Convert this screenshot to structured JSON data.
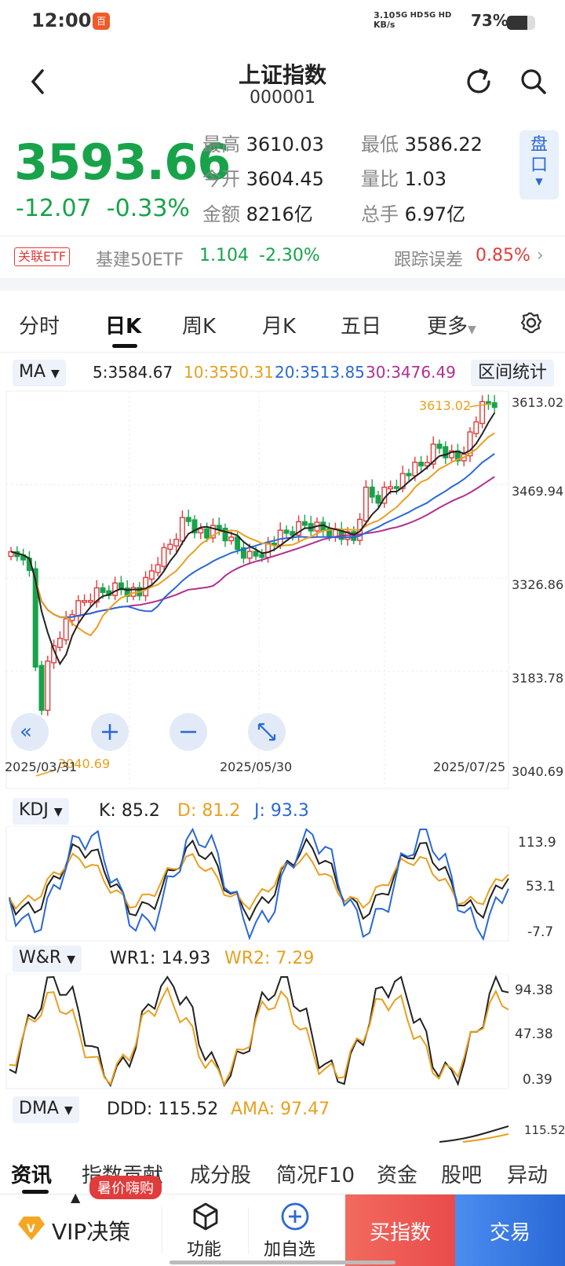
{
  "status": {
    "time": "12:00",
    "app_badge": "百",
    "net_speed": "3.10",
    "net_unit": "KB/s",
    "sig1": "5G HD",
    "sig2": "5G HD",
    "battery": "73%",
    "battery_level": 0.73
  },
  "header": {
    "title": "上证指数",
    "code": "000001"
  },
  "quote": {
    "price": "3593.66",
    "change": "-12.07",
    "change_pct": "-0.33%",
    "high_label": "最高",
    "high": "3610.03",
    "low_label": "最低",
    "low": "3586.22",
    "open_label": "今开",
    "open": "3604.45",
    "ratio_label": "量比",
    "ratio": "1.03",
    "amount_label": "金额",
    "amount": "8216亿",
    "turnover_label": "总手",
    "turnover": "6.97亿",
    "pankou": "盘口"
  },
  "etf": {
    "tag": "关联ETF",
    "name": "基建50ETF",
    "price": "1.104",
    "pct": "-2.30%",
    "track_label": "跟踪误差",
    "track": "0.85%"
  },
  "tabs": [
    "分时",
    "日K",
    "周K",
    "月K",
    "五日",
    "更多"
  ],
  "ma": {
    "label": "MA",
    "ma5": "5:3584.67",
    "ma10": "10:3550.31",
    "ma20": "20:3513.85",
    "ma30": "30:3476.49",
    "stat_btn": "区间统计"
  },
  "kline": {
    "yticks": [
      "3613.02",
      "3469.94",
      "3326.86",
      "3183.78",
      "3040.69"
    ],
    "high_mark": "3613.02",
    "low_mark": "3040.69",
    "dates": [
      "2025/03/31",
      "2025/05/30",
      "2025/07/25"
    ]
  },
  "kdj": {
    "label": "KDJ",
    "k": "K: 85.2",
    "d": "D: 81.2",
    "j": "J: 93.3",
    "yticks": [
      "113.9",
      "53.1",
      "-7.7"
    ]
  },
  "wr": {
    "label": "W&R",
    "wr1": "WR1: 14.93",
    "wr2": "WR2: 7.29",
    "yticks": [
      "94.38",
      "47.38",
      "0.39"
    ]
  },
  "dma": {
    "label": "DMA",
    "ddd": "DDD: 115.52",
    "ama": "AMA: 97.47",
    "ytick": "115.52"
  },
  "bottom_tabs": [
    "资讯",
    "指数贡献",
    "成分股",
    "简况F10",
    "资金",
    "股吧",
    "异动"
  ],
  "actions": {
    "promo": "暑价嗨购",
    "vip": "VIP决策",
    "func": "功能",
    "add": "加自选",
    "buy": "买指数",
    "trade": "交易"
  },
  "colors": {
    "up": "#e23b3b",
    "down": "#18a34a",
    "ma5": "#222222",
    "ma10": "#e8a020",
    "ma20": "#2a68d6",
    "ma30": "#b0308e"
  }
}
